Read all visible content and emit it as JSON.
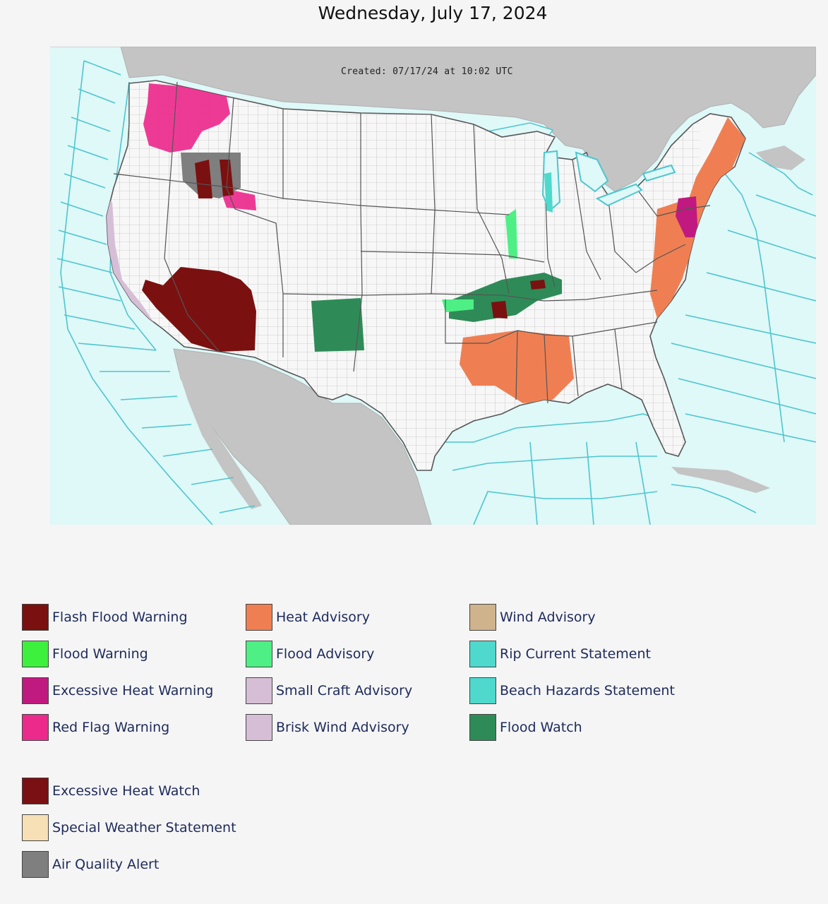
{
  "page": {
    "title": "Wednesday, July 17, 2024"
  },
  "map": {
    "created_stamp": "Created: 07/17/24 at 10:02 UTC",
    "colors": {
      "ocean": "#dff8f8",
      "land_foreign": "#c4c4c4",
      "land_us": "#f7f7f7",
      "county_line": "#9a9a9a",
      "marine_zone_line": "#4dc6cf"
    },
    "regions": [
      {
        "hazard": "Red Flag Warning",
        "area": "Washington / Idaho panhandle"
      },
      {
        "hazard": "Air Quality Alert",
        "area": "Northeast Oregon / Idaho"
      },
      {
        "hazard": "Flash Flood Warning",
        "area": "Northeast Oregon"
      },
      {
        "hazard": "Excessive Heat Warning",
        "area": "Southern Nevada, Arizona, Southern California"
      },
      {
        "hazard": "Small Craft Advisory",
        "area": "California coastal waters"
      },
      {
        "hazard": "Flood Watch",
        "area": "New Mexico"
      },
      {
        "hazard": "Flood Watch",
        "area": "Oklahoma, Arkansas, Missouri, Kentucky"
      },
      {
        "hazard": "Flood Advisory",
        "area": "Illinois / Oklahoma"
      },
      {
        "hazard": "Heat Advisory",
        "area": "Arkansas, Louisiana, Mississippi, Alabama"
      },
      {
        "hazard": "Heat Advisory",
        "area": "Mid-Atlantic and Northeast"
      },
      {
        "hazard": "Excessive Heat Warning",
        "area": "New Jersey / Pennsylvania"
      },
      {
        "hazard": "Rip Current Statement",
        "area": "Lake Michigan"
      }
    ]
  },
  "legend": {
    "items": [
      {
        "label": "Flash Flood Warning",
        "color": "#7b1010"
      },
      {
        "label": "Flood Warning",
        "color": "#3ef03e"
      },
      {
        "label": "Excessive Heat Warning",
        "color": "#c01a80"
      },
      {
        "label": "Red Flag Warning",
        "color": "#ec2a8c"
      },
      {
        "label": "Heat Advisory",
        "color": "#ef7f52"
      },
      {
        "label": "Flood Advisory",
        "color": "#4eef85"
      },
      {
        "label": "Small Craft Advisory",
        "color": "#d6bfd6"
      },
      {
        "label": "Brisk Wind Advisory",
        "color": "#d6bfd6"
      },
      {
        "label": "Wind Advisory",
        "color": "#cfb38d"
      },
      {
        "label": "Rip Current Statement",
        "color": "#4fd8cc"
      },
      {
        "label": "Beach Hazards Statement",
        "color": "#4fd8cc"
      },
      {
        "label": "Flood Watch",
        "color": "#2e8b57"
      },
      {
        "label": "Excessive Heat Watch",
        "color": "#7a0f14"
      },
      {
        "label": "Special Weather Statement",
        "color": "#f7dfb6"
      },
      {
        "label": "Air Quality Alert",
        "color": "#7f7f7f"
      }
    ]
  }
}
